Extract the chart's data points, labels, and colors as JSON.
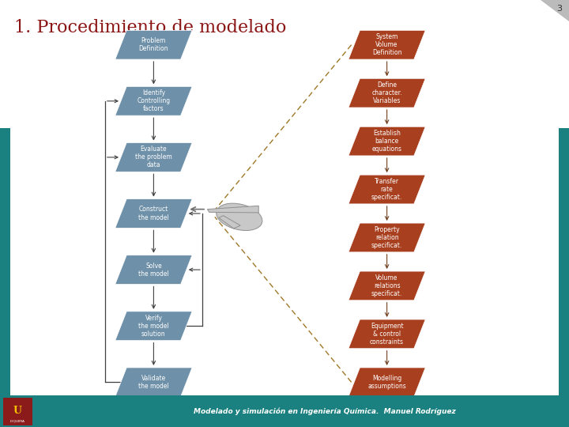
{
  "title": "1. Procedimiento de modelado",
  "slide_num": "3",
  "left_boxes": [
    "Problem\nDefinition",
    "Identify\nControlling\nfactors",
    "Evaluate\nthe problem\ndata",
    "Construct\nthe model",
    "Solve\nthe model",
    "Verify\nthe model\nsolution",
    "Validate\nthe model"
  ],
  "right_boxes": [
    "System\nVolume\nDefinition",
    "Define\ncharacter.\nVariables",
    "Establish\nbalance\nequations",
    "Transfer\nrate\nspecificat.",
    "Property\nrelation\nspecificat.",
    "Volume\nrelations\nspecificat.",
    "Equipment\n& control\nconstraints",
    "Modelling\nassumptions"
  ],
  "left_color": "#6e90a8",
  "right_color": "#a84020",
  "footer_color": "#1a8080",
  "title_color": "#8b1515",
  "footer_text": "Modelado y simulación en Ingeniería Química.  Manuel Rodríguez",
  "arrow_color": "#404040",
  "right_arrow_color": "#704020",
  "dashed_color": "#a07828",
  "side_bar_color": "#1a8080",
  "logo_color": "#8b1a1a",
  "logo_u_color": "#f5c000"
}
